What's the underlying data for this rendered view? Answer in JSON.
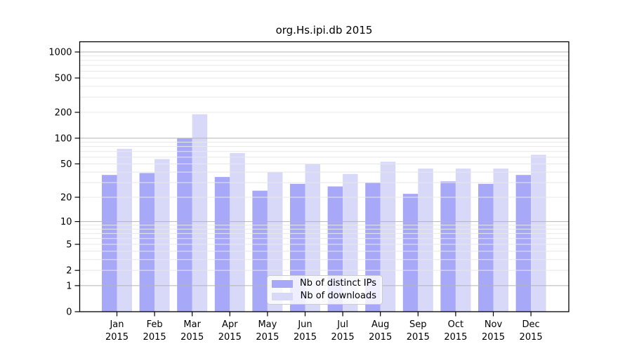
{
  "chart_data": {
    "type": "bar",
    "title": "org.Hs.ipi.db 2015",
    "categories": [
      "Jan",
      "Feb",
      "Mar",
      "Apr",
      "May",
      "Jun",
      "Jul",
      "Aug",
      "Sep",
      "Oct",
      "Nov",
      "Dec"
    ],
    "tick_year": "2015",
    "series": [
      {
        "name": "Nb of distinct IPs",
        "color": "#a8a8f8",
        "values": [
          37,
          39,
          100,
          35,
          24,
          29,
          27,
          30,
          22,
          31,
          29,
          37
        ]
      },
      {
        "name": "Nb of downloads",
        "color": "#d8d8f8",
        "values": [
          75,
          57,
          190,
          67,
          40,
          50,
          38,
          53,
          44,
          44,
          44,
          64
        ]
      }
    ],
    "xlabel": "",
    "ylabel": "",
    "yticks": [
      0,
      1,
      2,
      5,
      10,
      20,
      50,
      100,
      200,
      500,
      1000
    ],
    "yscale": "log1p",
    "ylim": [
      0,
      1300
    ],
    "grid": true,
    "legend_position": "lower-center",
    "colors": {
      "major_grid": "#b5b5b5",
      "minor_grid": "#e8e8e8",
      "axis": "#000000",
      "background": "#ffffff"
    }
  }
}
